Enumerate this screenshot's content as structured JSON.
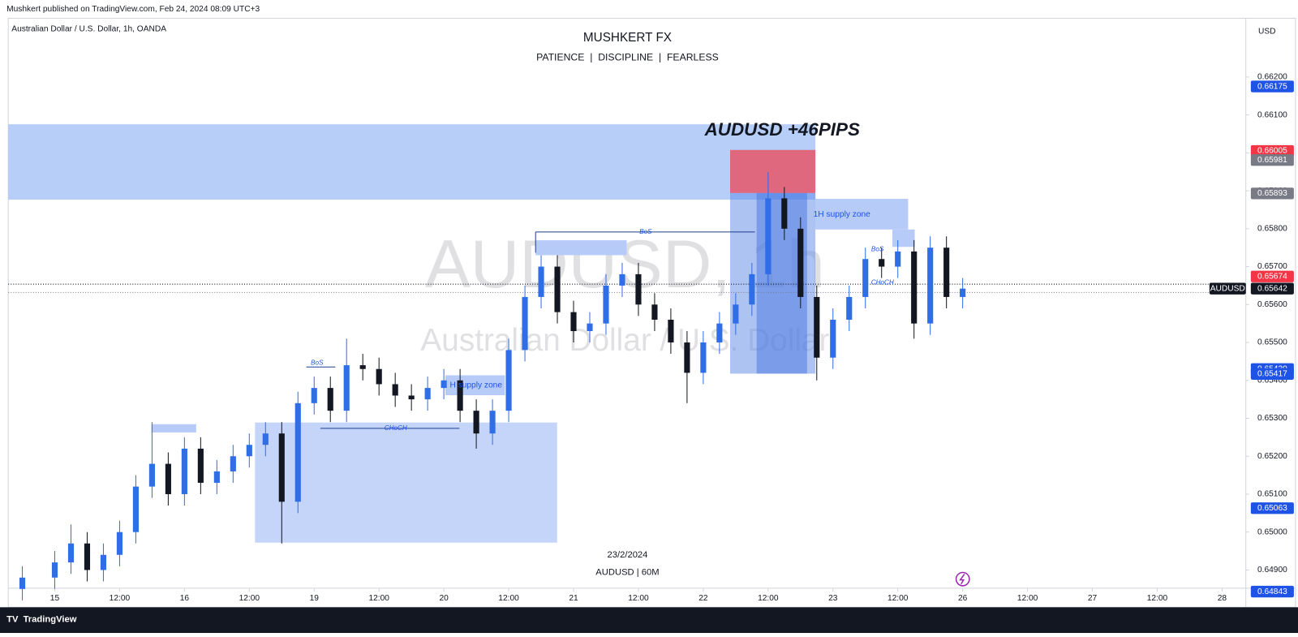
{
  "header": {
    "published": "Mushkert published on TradingView.com, Feb 24, 2024 08:09 UTC+3"
  },
  "footer": {
    "brand": "TradingView"
  },
  "chart_data": {
    "type": "candlestick",
    "symbol_info": "Australian Dollar / U.S. Dollar, 1h, OANDA",
    "title": "MUSHKERT FX",
    "subtitle": "PATIENCE  |  DISCIPLINE  |  FEARLESS",
    "currency": "USD",
    "watermark": "AUDUSD, 1h",
    "watermark_name": "Australian Dollar / U.S. Dollar",
    "annotations": {
      "headline": "AUDUSD +46PIPS",
      "bos_main": "BoS",
      "bos_left": "BoS",
      "bos_right": "BoS",
      "choch_left": "CHoCH",
      "choch_right": "CHoCH",
      "supply_zone": "1H supply zone",
      "supply_zone_left": "H supply zone",
      "date": "23/2/2024",
      "timeframe": "AUDUSD | 60M"
    },
    "up_color": "#2f6ee6",
    "down_color": "#131722",
    "x": [
      -6,
      0,
      3,
      6,
      9,
      12,
      15,
      18,
      21,
      24,
      27,
      30,
      33,
      36,
      39,
      42,
      45,
      48,
      51,
      54,
      57,
      60,
      63,
      66,
      69,
      72,
      75,
      78,
      81,
      84,
      87,
      90,
      93,
      96,
      99,
      102,
      105,
      108,
      111,
      114,
      117,
      120,
      123,
      126,
      129,
      132,
      135,
      138,
      141,
      144,
      147,
      150,
      153,
      156,
      159,
      162,
      165,
      168
    ],
    "open": [
      0.6485,
      0.6488,
      0.6492,
      0.6497,
      0.649,
      0.6494,
      0.65,
      0.6512,
      0.6518,
      0.651,
      0.6522,
      0.6513,
      0.6516,
      0.652,
      0.6523,
      0.6526,
      0.6508,
      0.6534,
      0.6538,
      0.6532,
      0.6544,
      0.6543,
      0.6539,
      0.6536,
      0.6535,
      0.6538,
      0.654,
      0.6532,
      0.6526,
      0.6532,
      0.6548,
      0.6562,
      0.657,
      0.6558,
      0.6553,
      0.6555,
      0.6565,
      0.6568,
      0.656,
      0.6556,
      0.655,
      0.6542,
      0.655,
      0.6555,
      0.656,
      0.6568,
      0.6588,
      0.658,
      0.6562,
      0.6546,
      0.6556,
      0.6562,
      0.6572,
      0.657,
      0.6574,
      0.6555,
      0.6575,
      0.6562
    ],
    "high": [
      0.6491,
      0.6495,
      0.6502,
      0.65,
      0.6497,
      0.6503,
      0.6515,
      0.6529,
      0.6521,
      0.6525,
      0.6525,
      0.6519,
      0.6523,
      0.6526,
      0.6529,
      0.6529,
      0.6537,
      0.6541,
      0.6541,
      0.6551,
      0.6547,
      0.6546,
      0.6542,
      0.6539,
      0.6541,
      0.6543,
      0.6543,
      0.6535,
      0.6535,
      0.6551,
      0.6565,
      0.6573,
      0.6573,
      0.6561,
      0.6558,
      0.6568,
      0.6571,
      0.6571,
      0.6563,
      0.6559,
      0.6553,
      0.6553,
      0.6558,
      0.6563,
      0.6571,
      0.6595,
      0.6591,
      0.6583,
      0.6565,
      0.6559,
      0.6565,
      0.6575,
      0.6575,
      0.6577,
      0.6577,
      0.6578,
      0.6578,
      0.6567
    ],
    "low": [
      0.6482,
      0.6485,
      0.6489,
      0.6487,
      0.6487,
      0.6491,
      0.6497,
      0.6509,
      0.6507,
      0.6507,
      0.651,
      0.651,
      0.6513,
      0.6517,
      0.652,
      0.6497,
      0.6505,
      0.6531,
      0.6529,
      0.6529,
      0.654,
      0.6536,
      0.6533,
      0.6532,
      0.6532,
      0.6535,
      0.6529,
      0.6522,
      0.6523,
      0.6529,
      0.6545,
      0.6559,
      0.6555,
      0.655,
      0.655,
      0.6552,
      0.6562,
      0.6557,
      0.6553,
      0.6547,
      0.6534,
      0.6539,
      0.6547,
      0.6552,
      0.6557,
      0.6565,
      0.6577,
      0.6559,
      0.654,
      0.6543,
      0.6553,
      0.6559,
      0.6567,
      0.6567,
      0.6551,
      0.6552,
      0.6559,
      0.6559
    ],
    "close": [
      0.6488,
      0.6492,
      0.6497,
      0.649,
      0.6494,
      0.65,
      0.6512,
      0.6518,
      0.651,
      0.6522,
      0.6513,
      0.6516,
      0.652,
      0.6523,
      0.6526,
      0.6508,
      0.6534,
      0.6538,
      0.6532,
      0.6544,
      0.6543,
      0.6539,
      0.6536,
      0.6535,
      0.6538,
      0.654,
      0.6532,
      0.6526,
      0.6532,
      0.6548,
      0.6562,
      0.657,
      0.6558,
      0.6553,
      0.6555,
      0.6565,
      0.6568,
      0.656,
      0.6556,
      0.655,
      0.6542,
      0.655,
      0.6555,
      0.656,
      0.6568,
      0.6588,
      0.658,
      0.6562,
      0.6546,
      0.6556,
      0.6562,
      0.6572,
      0.657,
      0.6574,
      0.6555,
      0.6575,
      0.6562,
      0.65642
    ],
    "xlim": [
      -8.6,
      220.4
    ],
    "xticks": [
      {
        "value": 0,
        "label": "15"
      },
      {
        "value": 12,
        "label": "12:00"
      },
      {
        "value": 24,
        "label": "16"
      },
      {
        "value": 36,
        "label": "12:00"
      },
      {
        "value": 48,
        "label": "19"
      },
      {
        "value": 60,
        "label": "12:00"
      },
      {
        "value": 72,
        "label": "20"
      },
      {
        "value": 84,
        "label": "12:00"
      },
      {
        "value": 96,
        "label": "21"
      },
      {
        "value": 108,
        "label": "12:00"
      },
      {
        "value": 120,
        "label": "22"
      },
      {
        "value": 132,
        "label": "12:00"
      },
      {
        "value": 144,
        "label": "23"
      },
      {
        "value": 156,
        "label": "12:00"
      },
      {
        "value": 168,
        "label": "26"
      },
      {
        "value": 180,
        "label": "12:00"
      },
      {
        "value": 192,
        "label": "27"
      },
      {
        "value": 204,
        "label": "12:00"
      },
      {
        "value": 216,
        "label": "28"
      }
    ],
    "ylim": [
      0.64852,
      0.66355
    ],
    "yticks": [
      {
        "value": 0.662,
        "label": "0.66200"
      },
      {
        "value": 0.661,
        "label": "0.66100"
      },
      {
        "value": 0.66,
        "label": "0.66000"
      },
      {
        "value": 0.659,
        "label": "0.65900"
      },
      {
        "value": 0.658,
        "label": "0.65800"
      },
      {
        "value": 0.657,
        "label": "0.65700"
      },
      {
        "value": 0.656,
        "label": "0.65600"
      },
      {
        "value": 0.655,
        "label": "0.65500"
      },
      {
        "value": 0.654,
        "label": "0.65400"
      },
      {
        "value": 0.653,
        "label": "0.65300"
      },
      {
        "value": 0.652,
        "label": "0.65200"
      },
      {
        "value": 0.651,
        "label": "0.65100"
      },
      {
        "value": 0.65,
        "label": "0.65000"
      },
      {
        "value": 0.649,
        "label": "0.64900"
      }
    ],
    "price_tags": [
      {
        "value": 0.66175,
        "label": "0.66175",
        "color": "#1e53e5"
      },
      {
        "value": 0.66005,
        "label": "0.66005",
        "color": "#f23645"
      },
      {
        "value": 0.65981,
        "label": "0.65981",
        "color": "#787b86"
      },
      {
        "value": 0.65893,
        "label": "0.65893",
        "color": "#787b86"
      },
      {
        "value": 0.65674,
        "label": "0.65674",
        "color": "#f23645"
      },
      {
        "value": 0.65642,
        "label": "0.65642",
        "color": "#131722"
      },
      {
        "value": 0.6543,
        "label": "0.65430",
        "color": "#1e53e5"
      },
      {
        "value": 0.65417,
        "label": "0.65417",
        "color": "#1e53e5"
      },
      {
        "value": 0.65063,
        "label": "0.65063",
        "color": "#1e53e5"
      },
      {
        "value": 0.64843,
        "label": "0.64843",
        "color": "#1e53e5"
      }
    ],
    "symbol_tag": "AUDUSD"
  }
}
